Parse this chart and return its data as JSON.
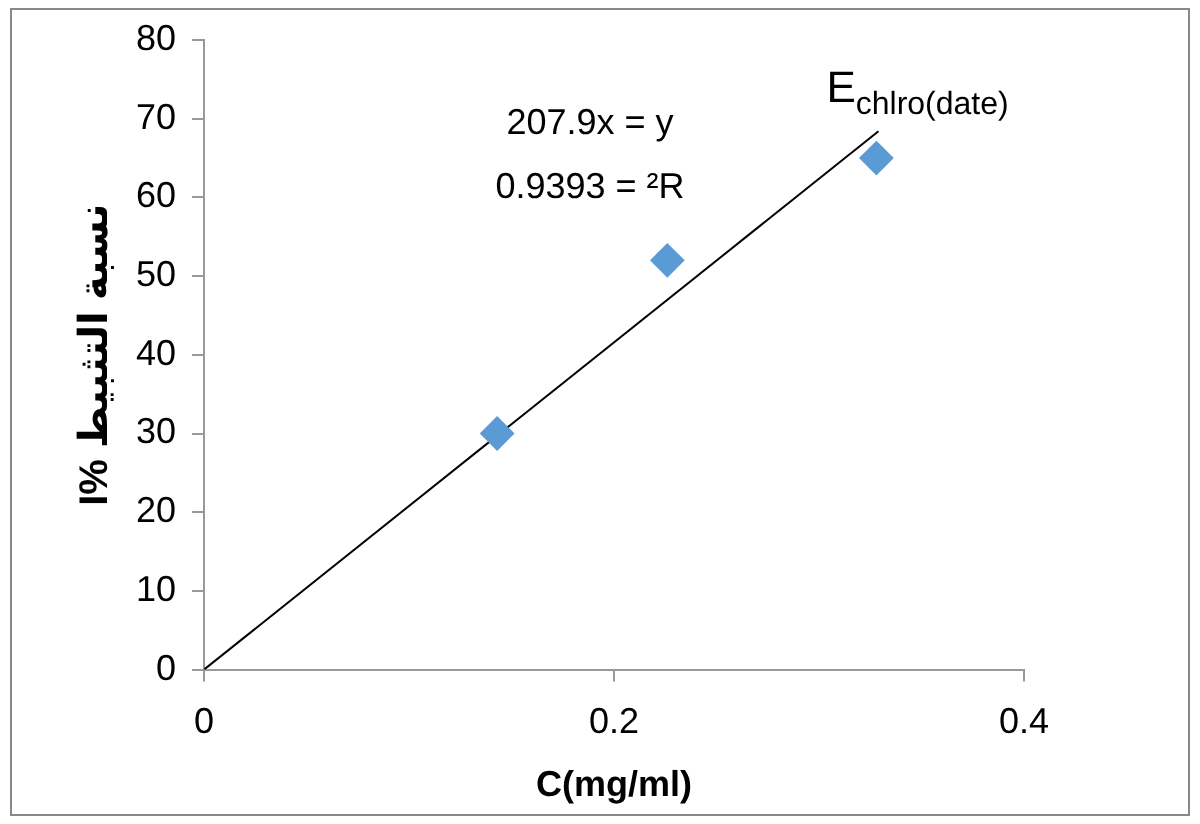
{
  "chart_data": {
    "type": "scatter",
    "xlabel": "C(mg/ml)",
    "ylabel": "نسبة التثبيط %I",
    "xlim": [
      0,
      0.4
    ],
    "xticks": [
      0,
      0.2,
      0.4
    ],
    "ylim": [
      0,
      80
    ],
    "yticks": [
      0,
      10,
      20,
      30,
      40,
      50,
      60,
      70,
      80
    ],
    "grid": false,
    "legend": false,
    "marker": "diamond",
    "series": [
      {
        "name": "E$_{chlro(date)}$",
        "color": "#5b9bd5",
        "x": [
          0.143,
          0.226,
          0.328
        ],
        "values": [
          30,
          52,
          65
        ]
      },
      {
        "type": "line",
        "color": "#000000",
        "x": [
          0,
          0.329
        ],
        "values": [
          0,
          68.4
        ],
        "marker": "none",
        "line_style": "solid"
      }
    ],
    "annotations": [
      "207.9x = y",
      "0.9393 = ²R"
    ]
  }
}
